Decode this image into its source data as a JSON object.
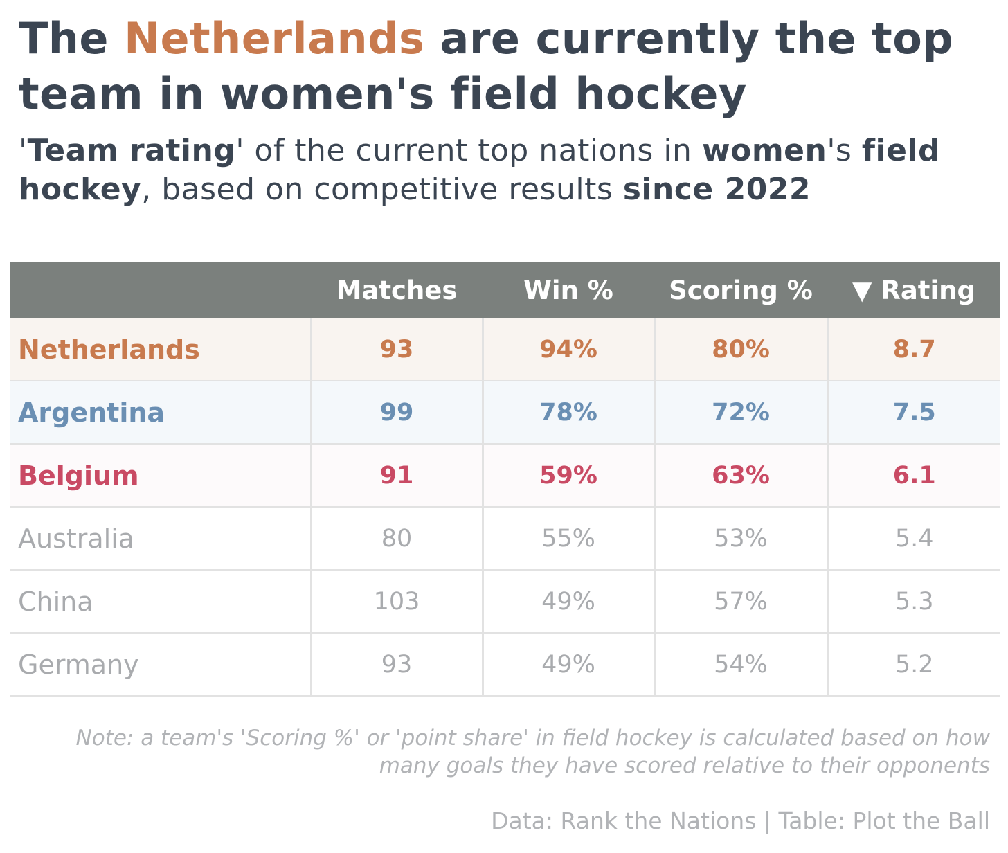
{
  "chart_data": {
    "type": "table",
    "title": {
      "part1": "The ",
      "highlight": "Netherlands",
      "part2": " are currently the top team in women's field hockey"
    },
    "subtitle": {
      "s1": "'",
      "b1": "Team rating",
      "s2": "' of the current top nations in ",
      "b2": "women",
      "s3": "'s ",
      "b3": "field hockey",
      "s4": ", based on competitive results ",
      "b4": "since 2022"
    },
    "columns": [
      "",
      "Matches",
      "Win %",
      "Scoring %",
      "▼ Rating"
    ],
    "rows": [
      {
        "team": "Netherlands",
        "matches": "93",
        "win": "94%",
        "scoring": "80%",
        "rating": "8.7"
      },
      {
        "team": "Argentina",
        "matches": "99",
        "win": "78%",
        "scoring": "72%",
        "rating": "7.5"
      },
      {
        "team": "Belgium",
        "matches": "91",
        "win": "59%",
        "scoring": "63%",
        "rating": "6.1"
      },
      {
        "team": "Australia",
        "matches": "80",
        "win": "55%",
        "scoring": "53%",
        "rating": "5.4"
      },
      {
        "team": "China",
        "matches": "103",
        "win": "49%",
        "scoring": "57%",
        "rating": "5.3"
      },
      {
        "team": "Germany",
        "matches": "93",
        "win": "49%",
        "scoring": "54%",
        "rating": "5.2"
      }
    ],
    "highlight_colors": {
      "Netherlands": {
        "text": "#c87a4e",
        "bg": "#f9f4f0"
      },
      "Argentina": {
        "text": "#6a8fb3",
        "bg": "#f4f8fb"
      },
      "Belgium": {
        "text": "#c94a64",
        "bg": "#fdfafb"
      }
    },
    "note": "Note: a team's 'Scoring %' or 'point share' in field hockey is calculated based on how many goals they have scored relative to their opponents",
    "source": "Data: Rank the Nations | Table: Plot the Ball"
  }
}
